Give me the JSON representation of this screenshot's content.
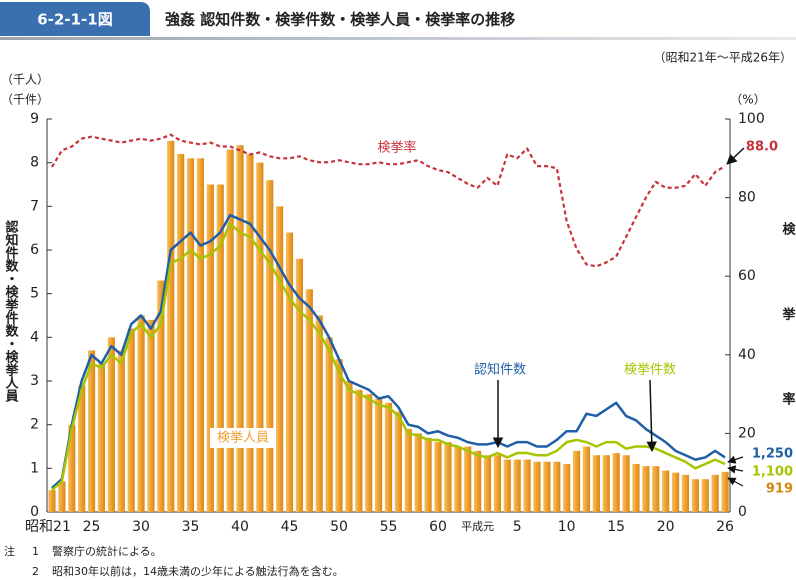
{
  "header": {
    "badge": "6-2-1-1図",
    "title": "強姦 認知件数・検挙件数・検挙人員・検挙率の推移",
    "subtitle": "（昭和21年～平成26年）"
  },
  "chart_data": {
    "type": "bar",
    "y_unit_labels": [
      "（千人）",
      "（千件）"
    ],
    "ylabel": "認知件数・検挙件数・検挙人員",
    "y2_unit_label": "（%）",
    "y2label": "検挙率",
    "categories": [
      "昭和21",
      null,
      null,
      null,
      "25",
      null,
      null,
      null,
      null,
      "30",
      null,
      null,
      null,
      null,
      "35",
      null,
      null,
      null,
      null,
      "40",
      null,
      null,
      null,
      null,
      "45",
      null,
      null,
      null,
      null,
      "50",
      null,
      null,
      null,
      null,
      "55",
      null,
      null,
      null,
      null,
      "60",
      null,
      null,
      null,
      "平成元",
      null,
      null,
      null,
      "5",
      null,
      null,
      null,
      null,
      "10",
      null,
      null,
      null,
      null,
      "15",
      null,
      null,
      null,
      null,
      "20",
      null,
      null,
      null,
      null,
      null,
      "26"
    ],
    "ylim": [
      0,
      9
    ],
    "yticks": [
      0,
      1,
      2,
      3,
      4,
      5,
      6,
      7,
      8,
      9
    ],
    "y2lim": [
      0,
      100
    ],
    "y2ticks": [
      0,
      20,
      40,
      60,
      80,
      100
    ],
    "series": [
      {
        "name": "検挙人員",
        "type": "bar",
        "color": "#f0a030",
        "values": [
          0.5,
          0.7,
          2.0,
          2.9,
          3.7,
          3.4,
          4.0,
          3.7,
          4.2,
          4.5,
          4.4,
          5.3,
          8.5,
          8.2,
          8.1,
          8.1,
          7.5,
          7.5,
          8.3,
          8.4,
          8.2,
          8.0,
          7.6,
          7.0,
          6.4,
          5.8,
          5.1,
          4.5,
          4.0,
          3.5,
          3.0,
          2.8,
          2.7,
          2.6,
          2.5,
          2.3,
          1.9,
          1.8,
          1.7,
          1.6,
          1.6,
          1.5,
          1.5,
          1.4,
          1.3,
          1.3,
          1.2,
          1.2,
          1.2,
          1.15,
          1.15,
          1.15,
          1.1,
          1.4,
          1.5,
          1.3,
          1.3,
          1.35,
          1.3,
          1.1,
          1.05,
          1.05,
          0.95,
          0.9,
          0.85,
          0.75,
          0.75,
          0.85,
          0.919
        ],
        "value_labels": [
          null,
          null,
          null,
          null,
          null,
          null,
          null,
          null,
          null,
          null,
          null,
          null,
          null,
          null,
          null,
          null,
          null,
          null,
          null,
          null,
          null,
          null,
          null,
          null,
          null,
          null,
          null,
          null,
          null,
          null,
          null,
          null,
          null,
          null,
          null,
          null,
          null,
          null,
          null,
          null,
          null,
          null,
          null,
          null,
          null,
          null,
          null,
          null,
          null,
          null,
          null,
          null,
          null,
          null,
          null,
          null,
          null,
          null,
          null,
          null,
          null,
          null,
          null,
          null,
          null,
          null,
          null,
          null,
          "919"
        ]
      },
      {
        "name": "認知件数",
        "type": "line",
        "color": "#1f5fa8",
        "values": [
          0.55,
          0.75,
          2.0,
          3.0,
          3.6,
          3.4,
          3.8,
          3.6,
          4.3,
          4.5,
          4.2,
          4.6,
          6.0,
          6.2,
          6.4,
          6.1,
          6.2,
          6.4,
          6.8,
          6.7,
          6.6,
          6.3,
          6.0,
          5.6,
          5.2,
          4.9,
          4.7,
          4.4,
          4.0,
          3.5,
          3.0,
          2.9,
          2.8,
          2.6,
          2.65,
          2.4,
          2.0,
          1.95,
          1.8,
          1.85,
          1.75,
          1.7,
          1.6,
          1.55,
          1.55,
          1.6,
          1.5,
          1.6,
          1.6,
          1.5,
          1.5,
          1.65,
          1.85,
          1.85,
          2.25,
          2.2,
          2.35,
          2.5,
          2.2,
          2.1,
          1.9,
          1.75,
          1.6,
          1.4,
          1.3,
          1.2,
          1.25,
          1.4,
          1.25
        ],
        "value_labels": [
          null,
          null,
          null,
          null,
          null,
          null,
          null,
          null,
          null,
          null,
          null,
          null,
          null,
          null,
          null,
          null,
          null,
          null,
          null,
          null,
          null,
          null,
          null,
          null,
          null,
          null,
          null,
          null,
          null,
          null,
          null,
          null,
          null,
          null,
          null,
          null,
          null,
          null,
          null,
          null,
          null,
          null,
          null,
          null,
          null,
          null,
          null,
          null,
          null,
          null,
          null,
          null,
          null,
          null,
          null,
          null,
          null,
          null,
          null,
          null,
          null,
          null,
          null,
          null,
          null,
          null,
          null,
          null,
          "1,250"
        ]
      },
      {
        "name": "検挙件数",
        "type": "line",
        "color": "#a8c400",
        "values": [
          0.5,
          0.7,
          1.9,
          2.8,
          3.4,
          3.3,
          3.6,
          3.4,
          4.1,
          4.3,
          4.0,
          4.3,
          5.7,
          5.8,
          6.0,
          5.8,
          5.9,
          6.1,
          6.6,
          6.4,
          6.3,
          6.0,
          5.7,
          5.3,
          4.9,
          4.6,
          4.4,
          4.1,
          3.7,
          3.2,
          2.8,
          2.7,
          2.6,
          2.45,
          2.4,
          2.2,
          1.8,
          1.75,
          1.65,
          1.65,
          1.55,
          1.5,
          1.4,
          1.3,
          1.25,
          1.35,
          1.25,
          1.35,
          1.35,
          1.3,
          1.3,
          1.4,
          1.6,
          1.65,
          1.6,
          1.5,
          1.6,
          1.6,
          1.45,
          1.5,
          1.5,
          1.45,
          1.35,
          1.25,
          1.15,
          1.0,
          1.1,
          1.2,
          1.1
        ],
        "value_labels": [
          null,
          null,
          null,
          null,
          null,
          null,
          null,
          null,
          null,
          null,
          null,
          null,
          null,
          null,
          null,
          null,
          null,
          null,
          null,
          null,
          null,
          null,
          null,
          null,
          null,
          null,
          null,
          null,
          null,
          null,
          null,
          null,
          null,
          null,
          null,
          null,
          null,
          null,
          null,
          null,
          null,
          null,
          null,
          null,
          null,
          null,
          null,
          null,
          null,
          null,
          null,
          null,
          null,
          null,
          null,
          null,
          null,
          null,
          null,
          null,
          null,
          null,
          null,
          null,
          null,
          null,
          null,
          null,
          "1,100"
        ]
      },
      {
        "name": "検挙率",
        "type": "line",
        "axis": "y2",
        "dashed": true,
        "color": "#c8323c",
        "values": [
          87.8,
          92,
          93,
          95,
          95.5,
          95,
          94.5,
          94,
          94.5,
          95,
          94.5,
          95,
          96,
          94.5,
          94,
          93.5,
          94,
          93,
          93,
          92,
          91,
          91.5,
          90.5,
          90,
          90,
          90.5,
          89.5,
          89,
          89,
          89.5,
          89,
          88.5,
          88.5,
          89,
          88.5,
          88.5,
          89,
          89.5,
          88,
          87,
          86.5,
          85,
          83.5,
          82.5,
          85,
          83,
          91,
          90,
          92.5,
          88,
          88,
          87.5,
          74,
          67,
          63,
          62.5,
          63.5,
          65,
          70,
          75,
          80,
          84,
          82.5,
          82.5,
          83,
          86,
          83,
          86.5,
          88.0
        ],
        "value_labels": [
          null,
          null,
          null,
          null,
          null,
          null,
          null,
          null,
          null,
          null,
          null,
          null,
          null,
          null,
          null,
          null,
          null,
          null,
          null,
          null,
          null,
          null,
          null,
          null,
          null,
          null,
          null,
          null,
          null,
          null,
          null,
          null,
          null,
          null,
          null,
          null,
          null,
          null,
          null,
          null,
          null,
          null,
          null,
          null,
          null,
          null,
          null,
          null,
          null,
          null,
          null,
          null,
          null,
          null,
          null,
          null,
          null,
          null,
          null,
          null,
          null,
          null,
          null,
          null,
          null,
          null,
          null,
          null,
          "88.0"
        ]
      }
    ]
  },
  "notes": {
    "label": "注",
    "items": [
      {
        "num": "1",
        "text": "警察庁の統計による。"
      },
      {
        "num": "2",
        "text": "昭和30年以前は，14歳未満の少年による触法行為を含む。"
      }
    ]
  }
}
